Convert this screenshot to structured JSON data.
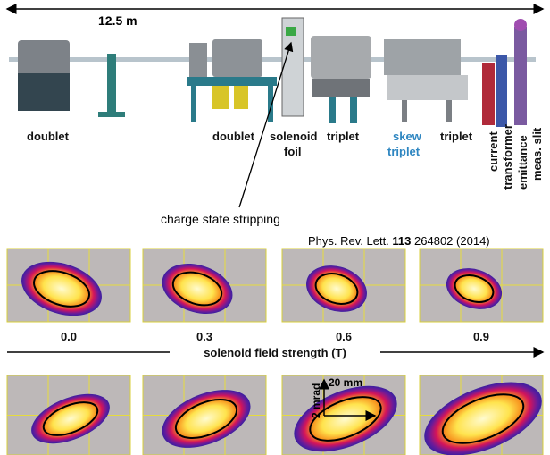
{
  "beamline": {
    "length_label": "12.5 m",
    "labels": {
      "doublet_1": "doublet",
      "doublet_2": "doublet",
      "solenoid": "solenoid",
      "foil": "foil",
      "triplet_1": "triplet",
      "skew": "skew",
      "skew_triplet": "triplet",
      "triplet_2": "triplet",
      "current": "current",
      "transformer": "transformer",
      "emittance": "emittance",
      "meas_slit": "meas. slit"
    }
  },
  "annotation": "charge state stripping",
  "citation": {
    "journal": "Phys. Rev. Lett.",
    "volume": "113",
    "page": "264802",
    "year": "(2014)"
  },
  "phase_space": {
    "field_values": [
      "0.0",
      "0.3",
      "0.6",
      "0.9"
    ],
    "axis_label": "solenoid field strength (T)",
    "scale_x": "20 mm",
    "scale_y": "2 mrad"
  }
}
